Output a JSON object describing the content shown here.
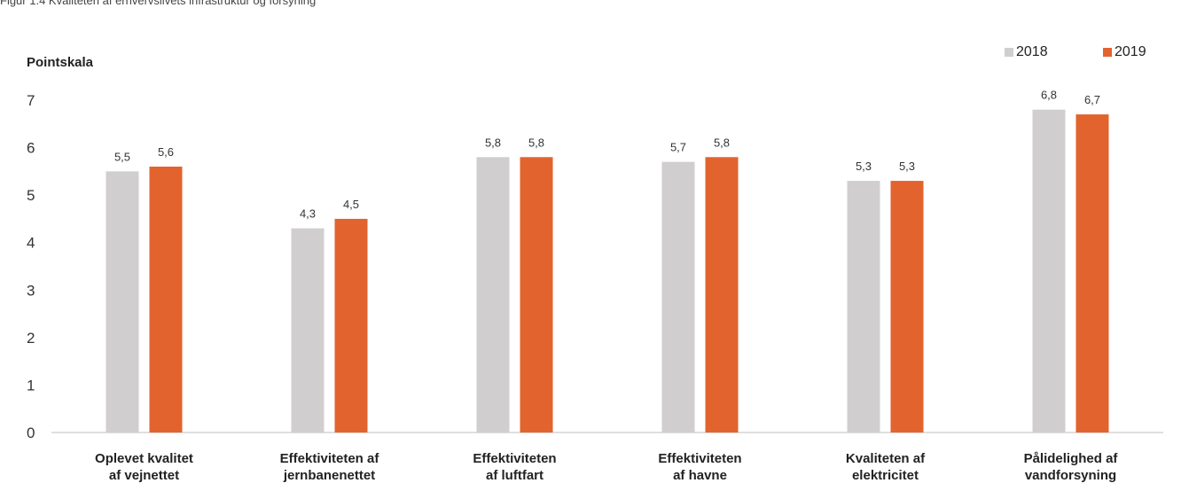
{
  "top_text": "Figur 1.4 Kvaliteten af erhvervslivets infrastruktur og forsyning",
  "chart_data": {
    "type": "bar",
    "ylabel": "Pointskala",
    "ylim": [
      0,
      7
    ],
    "yticks": [
      "0",
      "1",
      "2",
      "3",
      "4",
      "5",
      "6",
      "7"
    ],
    "categories": [
      [
        "Oplevet kvalitet",
        "af vejnettet"
      ],
      [
        "Effektiviteten af",
        "jernbanenettet"
      ],
      [
        "Effektiviteten",
        "af luftfart"
      ],
      [
        "Effektiviteten",
        "af havne"
      ],
      [
        "Kvaliteten af",
        "elektricitet"
      ],
      [
        "Pålidelighed af",
        "vandforsyning"
      ]
    ],
    "series": [
      {
        "name": "2018",
        "color": "#d0cece",
        "values": [
          5.5,
          4.3,
          5.8,
          5.7,
          5.3,
          6.8
        ],
        "labels": [
          "5,5",
          "4,3",
          "5,8",
          "5,7",
          "5,3",
          "6,8"
        ]
      },
      {
        "name": "2019",
        "color": "#e2632e",
        "values": [
          5.6,
          4.5,
          5.8,
          5.8,
          5.3,
          6.7
        ],
        "labels": [
          "5,6",
          "4,5",
          "5,8",
          "5,8",
          "5,3",
          "6,7"
        ]
      }
    ],
    "legend_position": "top-right",
    "grid": false
  }
}
